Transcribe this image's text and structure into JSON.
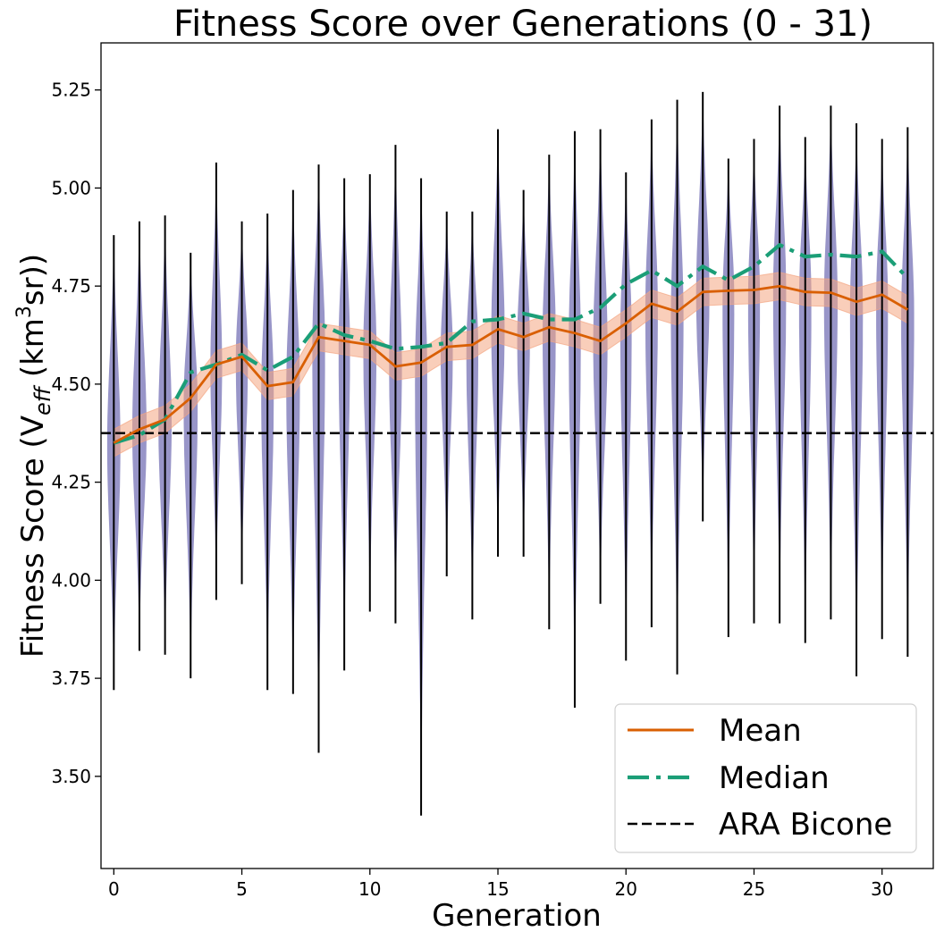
{
  "chart_data": {
    "type": "line",
    "title": "Fitness Score over Generations (0 - 31)",
    "xlabel": "Generation",
    "ylabel_parts": {
      "a": "Fitness Score (V",
      "sub": "eff",
      "b": " (km",
      "sup": "3",
      "c": "sr))"
    },
    "xlim": [
      -0.5,
      32
    ],
    "ylim": [
      3.265,
      5.37
    ],
    "xticks": [
      0,
      5,
      10,
      15,
      20,
      25,
      30
    ],
    "xtick_labels": [
      "0",
      "5",
      "10",
      "15",
      "20",
      "25",
      "30"
    ],
    "yticks": [
      3.5,
      3.75,
      4.0,
      4.25,
      4.5,
      4.75,
      5.0,
      5.25
    ],
    "ytick_labels": [
      "3.50",
      "3.75",
      "4.00",
      "4.25",
      "4.50",
      "4.75",
      "5.00",
      "5.25"
    ],
    "generations": [
      0,
      1,
      2,
      3,
      4,
      5,
      6,
      7,
      8,
      9,
      10,
      11,
      12,
      13,
      14,
      15,
      16,
      17,
      18,
      19,
      20,
      21,
      22,
      23,
      24,
      25,
      26,
      27,
      28,
      29,
      30,
      31
    ],
    "series": [
      {
        "name": "Mean",
        "color": "#d95f02",
        "values": [
          4.35,
          4.385,
          4.41,
          4.465,
          4.55,
          4.57,
          4.495,
          4.505,
          4.62,
          4.61,
          4.6,
          4.545,
          4.555,
          4.595,
          4.6,
          4.64,
          4.62,
          4.645,
          4.63,
          4.61,
          4.655,
          4.705,
          4.685,
          4.735,
          4.738,
          4.74,
          4.75,
          4.735,
          4.733,
          4.71,
          4.728,
          4.69
        ]
      },
      {
        "name": "Median",
        "color": "#1b9e77",
        "values": [
          4.35,
          4.37,
          4.41,
          4.53,
          4.55,
          4.575,
          4.535,
          4.57,
          4.655,
          4.625,
          4.61,
          4.59,
          4.595,
          4.605,
          4.66,
          4.665,
          4.68,
          4.665,
          4.665,
          4.695,
          4.755,
          4.79,
          4.75,
          4.8,
          4.765,
          4.8,
          4.855,
          4.825,
          4.83,
          4.825,
          4.838,
          4.77
        ]
      }
    ],
    "mean_band": {
      "color": "#f4a582",
      "half_width": [
        0.035,
        0.035,
        0.035,
        0.035,
        0.035,
        0.035,
        0.035,
        0.035,
        0.035,
        0.035,
        0.035,
        0.035,
        0.035,
        0.035,
        0.035,
        0.035,
        0.035,
        0.035,
        0.035,
        0.035,
        0.035,
        0.035,
        0.035,
        0.035,
        0.035,
        0.035,
        0.035,
        0.035,
        0.035,
        0.035,
        0.035,
        0.035
      ]
    },
    "violins": {
      "color": "#8d89c2",
      "min": [
        3.72,
        3.82,
        3.81,
        3.75,
        3.95,
        3.99,
        3.72,
        3.71,
        3.56,
        3.77,
        3.92,
        3.89,
        3.4,
        4.01,
        3.9,
        4.06,
        4.06,
        3.875,
        3.675,
        3.94,
        3.795,
        3.88,
        3.76,
        4.15,
        3.855,
        3.89,
        3.89,
        3.84,
        3.9,
        3.755,
        3.85,
        3.805
      ],
      "max": [
        4.88,
        4.915,
        4.93,
        4.835,
        5.065,
        4.915,
        4.935,
        4.995,
        5.06,
        5.025,
        5.035,
        5.11,
        5.025,
        4.94,
        4.94,
        5.15,
        4.995,
        5.085,
        5.145,
        5.15,
        5.04,
        5.175,
        5.225,
        5.245,
        5.075,
        5.125,
        5.21,
        5.13,
        5.21,
        5.165,
        5.125,
        5.155
      ],
      "width_scale": [
        0.26,
        0.28,
        0.26,
        0.28,
        0.23,
        0.24,
        0.25,
        0.27,
        0.26,
        0.23,
        0.26,
        0.25,
        0.25,
        0.24,
        0.24,
        0.26,
        0.25,
        0.26,
        0.24,
        0.28,
        0.23,
        0.25,
        0.25,
        0.26,
        0.24,
        0.24,
        0.26,
        0.25,
        0.27,
        0.26,
        0.24,
        0.26
      ]
    },
    "reference_line": {
      "name": "ARA Bicone",
      "value": 4.375,
      "color": "#000000"
    },
    "legend": {
      "position": "lower-right",
      "entries": [
        {
          "label": "Mean",
          "style": "solid",
          "color": "#d95f02"
        },
        {
          "label": "Median",
          "style": "dashdot",
          "color": "#1b9e77"
        },
        {
          "label": "ARA Bicone",
          "style": "dashed",
          "color": "#000000"
        }
      ]
    }
  }
}
